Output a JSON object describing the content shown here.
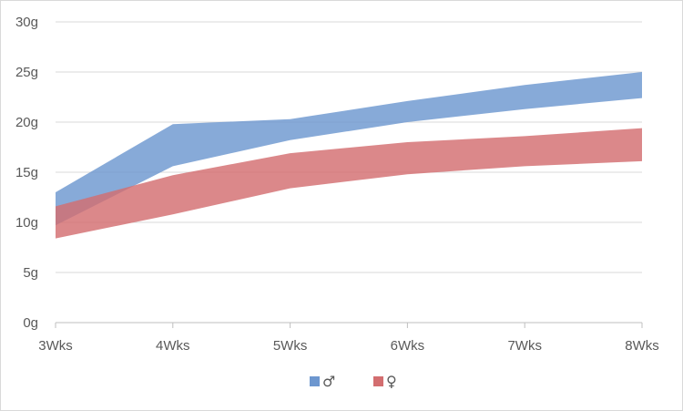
{
  "chart_data": {
    "type": "area",
    "title": "",
    "xlabel": "",
    "ylabel": "",
    "categories": [
      "3Wks",
      "4Wks",
      "5Wks",
      "6Wks",
      "7Wks",
      "8Wks"
    ],
    "ylim": [
      0,
      30
    ],
    "yticks": [
      0,
      5,
      10,
      15,
      20,
      25,
      30
    ],
    "ytick_labels": [
      "0g",
      "5g",
      "10g",
      "15g",
      "20g",
      "25g",
      "30g"
    ],
    "grid": true,
    "legend_position": "bottom",
    "series": [
      {
        "name": "♂",
        "color": "#6d97cf",
        "low": [
          9.7,
          15.6,
          18.2,
          20.0,
          21.3,
          22.4
        ],
        "high": [
          13.0,
          19.8,
          20.3,
          22.1,
          23.7,
          25.0
        ]
      },
      {
        "name": "♀",
        "color": "#d36e70",
        "low": [
          8.4,
          10.8,
          13.4,
          14.8,
          15.6,
          16.1
        ],
        "high": [
          11.6,
          14.7,
          16.9,
          18.0,
          18.6,
          19.4
        ]
      }
    ]
  }
}
